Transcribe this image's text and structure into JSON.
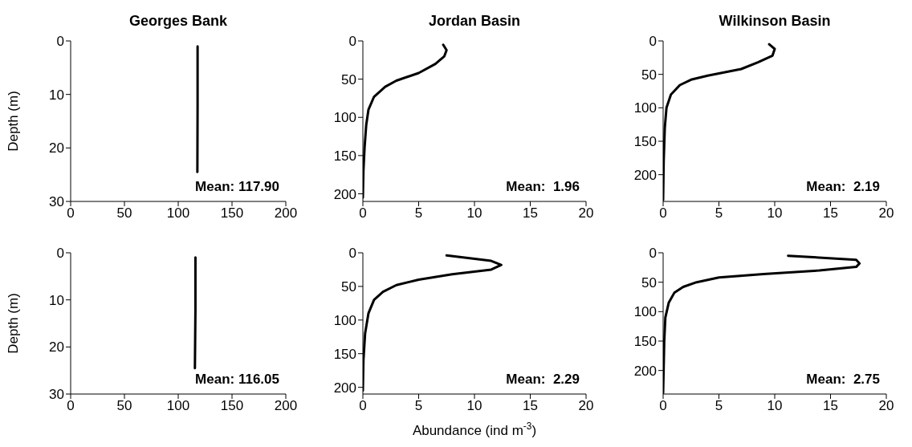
{
  "chart_data": [
    {
      "type": "line",
      "title": "Georges Bank",
      "ylabel": "Depth (m)",
      "series": [
        {
          "color": "#000000",
          "x": [
            118,
            118,
            117.8
          ],
          "values": [
            1,
            12,
            24.5
          ]
        }
      ],
      "xlim": [
        0,
        200
      ],
      "xticks": [
        0,
        50,
        100,
        150,
        200
      ],
      "ylim": [
        30,
        0
      ],
      "yticks": [
        0,
        10,
        20,
        30
      ],
      "annotations": [
        "Mean: 117.90"
      ]
    },
    {
      "type": "line",
      "title": "Jordan Basin",
      "series": [
        {
          "color": "#000000",
          "x": [
            7.2,
            7.5,
            7.3,
            6.5,
            5,
            3,
            2,
            1,
            0.5,
            0.3,
            0.15,
            0.05,
            0
          ],
          "values": [
            5,
            12,
            20,
            30,
            42,
            52,
            60,
            73,
            90,
            110,
            140,
            170,
            205
          ]
        }
      ],
      "xlim": [
        0,
        20
      ],
      "xticks": [
        0,
        5,
        10,
        15,
        20
      ],
      "ylim": [
        210,
        0
      ],
      "yticks": [
        0,
        50,
        100,
        150,
        200
      ],
      "annotations": [
        "Mean:  1.96"
      ]
    },
    {
      "type": "line",
      "title": "Wilkinson Basin",
      "series": [
        {
          "color": "#000000",
          "x": [
            9.5,
            10,
            9.8,
            8.5,
            7,
            4,
            2.5,
            1.5,
            0.7,
            0.3,
            0.15,
            0.05,
            0
          ],
          "values": [
            5,
            12,
            22,
            32,
            42,
            52,
            58,
            66,
            80,
            100,
            130,
            180,
            238
          ]
        }
      ],
      "xlim": [
        0,
        20
      ],
      "xticks": [
        0,
        5,
        10,
        15,
        20
      ],
      "ylim": [
        240,
        0
      ],
      "yticks": [
        0,
        50,
        100,
        150,
        200
      ],
      "annotations": [
        "Mean:  2.19"
      ]
    },
    {
      "type": "line",
      "ylabel": "Depth (m)",
      "series": [
        {
          "color": "#000000",
          "x": [
            116,
            116,
            115.5
          ],
          "values": [
            1,
            12,
            24.5
          ]
        }
      ],
      "xlim": [
        0,
        200
      ],
      "xticks": [
        0,
        50,
        100,
        150,
        200
      ],
      "ylim": [
        30,
        0
      ],
      "yticks": [
        0,
        10,
        20,
        30
      ],
      "annotations": [
        "Mean: 116.05"
      ]
    },
    {
      "type": "line",
      "xlabel": "Abundance (ind m$^{-3}$)",
      "series": [
        {
          "color": "#000000",
          "x": [
            7.5,
            11.5,
            12.4,
            11.5,
            8,
            5,
            3,
            1.8,
            1,
            0.5,
            0.2,
            0.05,
            0
          ],
          "values": [
            4,
            12,
            18,
            25,
            32,
            40,
            48,
            58,
            70,
            90,
            120,
            160,
            205
          ]
        }
      ],
      "xlim": [
        0,
        20
      ],
      "xticks": [
        0,
        5,
        10,
        15,
        20
      ],
      "ylim": [
        210,
        0
      ],
      "yticks": [
        0,
        50,
        100,
        150,
        200
      ],
      "annotations": [
        "Mean:  2.29"
      ]
    },
    {
      "type": "line",
      "series": [
        {
          "color": "#000000",
          "x": [
            11.2,
            17.3,
            17.6,
            17.3,
            14,
            9,
            5,
            3,
            1.8,
            1,
            0.5,
            0.2,
            0.1,
            0
          ],
          "values": [
            5,
            12,
            18,
            24,
            30,
            36,
            42,
            50,
            58,
            68,
            85,
            110,
            150,
            238
          ]
        }
      ],
      "xlim": [
        0,
        20
      ],
      "xticks": [
        0,
        5,
        10,
        15,
        20
      ],
      "ylim": [
        240,
        0
      ],
      "yticks": [
        0,
        50,
        100,
        150,
        200
      ],
      "annotations": [
        "Mean:  2.75"
      ]
    }
  ]
}
